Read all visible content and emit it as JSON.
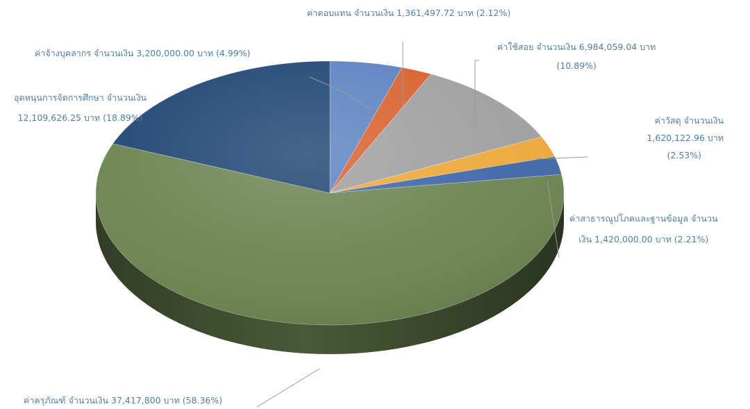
{
  "chart_data": {
    "type": "pie",
    "style": "3d",
    "start_angle_deg": 90,
    "direction": "clockwise",
    "slices": [
      {
        "label_lines": [
          "ค่าจ้างบุคลากร จำนวนเงิน 3,200,000.00 บาท (4.99%)"
        ],
        "amount": 3200000.0,
        "percent": 4.99,
        "color": "#5b82c0"
      },
      {
        "label_lines": [
          "ค่าตอบแทน จำนวนเงิน 1,361,497.72 บาท (2.12%)"
        ],
        "amount": 1361497.72,
        "percent": 2.12,
        "color": "#d8602c"
      },
      {
        "label_lines": [
          "ค่าใช้สอย จำนวนเงิน 6,984,059.04 บาท",
          "(10.89%)"
        ],
        "amount": 6984059.04,
        "percent": 10.89,
        "color": "#9f9f9f"
      },
      {
        "label_lines": [
          "ค่าวัสดุ จำนวนเงิน",
          "1,620,122.96 บาท",
          "(2.53%)"
        ],
        "amount": 1620122.96,
        "percent": 2.53,
        "color": "#eda83a"
      },
      {
        "label_lines": [
          "ค่าสาธารณูปโภคและฐานข้อมูล จำนวน",
          "เงิน 1,420,000.00 บาท (2.21%)"
        ],
        "amount": 1420000.0,
        "percent": 2.21,
        "color": "#3f66a8"
      },
      {
        "label_lines": [
          "ค่าครุภัณฑ์ จำนวนเงิน 37,417,800 บาท (58.36%)"
        ],
        "amount": 37417800,
        "percent": 58.36,
        "color": "#6b8350"
      },
      {
        "label_lines": [
          "อุดหนุนการจัดการศึกษา จำนวนเงิน",
          "12,109,626.25 บาท (18.89%)"
        ],
        "amount": 12109626.25,
        "percent": 18.89,
        "color": "#1f4473"
      }
    ]
  }
}
